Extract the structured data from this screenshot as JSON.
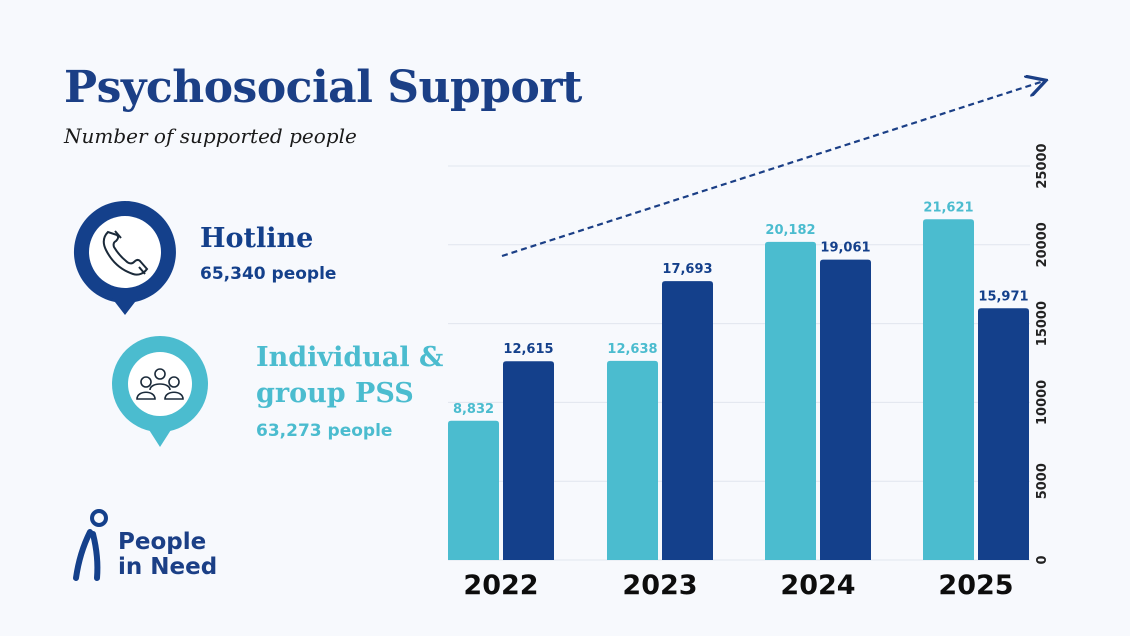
{
  "title": "Psychosocial Support",
  "subtitle": "Number of supported people",
  "categories_panel": {
    "hotline": {
      "title": "Hotline",
      "people": "65,340 people",
      "icon": "phone-icon",
      "color": "#14408b"
    },
    "individual": {
      "title_line1": "Individual &",
      "title_line2": "group PSS",
      "people": "63,273 people",
      "icon": "people-group-icon",
      "color": "#4bbccf"
    }
  },
  "logo": {
    "line1": "People",
    "line2": "in Need",
    "icon": "person-logo-icon"
  },
  "chart_data": {
    "type": "bar",
    "categories": [
      "2022",
      "2023",
      "2024",
      "2025"
    ],
    "series": [
      {
        "values": [
          8832,
          12638,
          20182,
          21621
        ],
        "labels": [
          "8,832",
          "12,638",
          "20,182",
          "21,621"
        ],
        "color": "#4bbccf"
      },
      {
        "values": [
          12615,
          17693,
          19061,
          15971
        ],
        "labels": [
          "12,615",
          "17,693",
          "19,061",
          "15,971"
        ],
        "color": "#14408b"
      }
    ],
    "ylim": [
      0,
      25000
    ],
    "yticks": [
      "0",
      "5000",
      "10000",
      "15000",
      "20000",
      "25000"
    ],
    "axis_position": "right",
    "grid": true,
    "trend_arrow": true
  }
}
